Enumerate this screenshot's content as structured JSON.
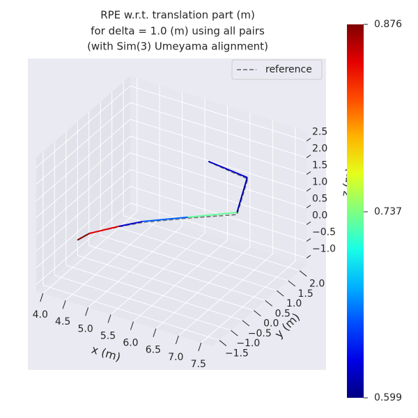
{
  "chart_data": {
    "type": "line3d",
    "title": [
      "RPE w.r.t. translation part (m)",
      "for delta = 1.0 (m) using all pairs",
      "(with Sim(3) Umeyama alignment)"
    ],
    "xlabel": "x (m)",
    "ylabel": "y (m)",
    "zlabel": "z (m)",
    "xlim": [
      3.85,
      7.75
    ],
    "ylim": [
      -1.8,
      2.3
    ],
    "zlim": [
      -1.2,
      2.8
    ],
    "xticks": [
      {
        "value": 4.0,
        "label": "4.0"
      },
      {
        "value": 4.5,
        "label": "4.5"
      },
      {
        "value": 5.0,
        "label": "5.0"
      },
      {
        "value": 5.5,
        "label": "5.5"
      },
      {
        "value": 6.0,
        "label": "6.0"
      },
      {
        "value": 6.5,
        "label": "6.5"
      },
      {
        "value": 7.0,
        "label": "7.0"
      },
      {
        "value": 7.5,
        "label": "7.5"
      }
    ],
    "yticks": [
      {
        "value": -1.5,
        "label": "−1.5"
      },
      {
        "value": -1.0,
        "label": "−1.0"
      },
      {
        "value": -0.5,
        "label": "−0.5"
      },
      {
        "value": 0.0,
        "label": "0.0"
      },
      {
        "value": 0.5,
        "label": "0.5"
      },
      {
        "value": 1.0,
        "label": "1.0"
      },
      {
        "value": 1.5,
        "label": "1.5"
      },
      {
        "value": 2.0,
        "label": "2.0"
      }
    ],
    "zticks": [
      {
        "value": -1.0,
        "label": "−1.0"
      },
      {
        "value": -0.5,
        "label": "−0.5"
      },
      {
        "value": 0.0,
        "label": "0.0"
      },
      {
        "value": 0.5,
        "label": "0.5"
      },
      {
        "value": 1.0,
        "label": "1.0"
      },
      {
        "value": 1.5,
        "label": "1.5"
      },
      {
        "value": 2.0,
        "label": "2.0"
      },
      {
        "value": 2.5,
        "label": "2.5"
      }
    ],
    "grid": true,
    "legend": "upper right",
    "series": [
      {
        "name": "reference",
        "color": "#777777",
        "style": "dashed",
        "x": [
          4.0,
          4.1,
          4.55,
          4.92,
          5.65,
          6.4,
          6.55,
          5.93
        ],
        "y": [
          -0.28,
          0.03,
          0.45,
          0.78,
          1.36,
          1.93,
          2.1,
          1.66
        ],
        "z": [
          -0.5,
          -0.45,
          -0.31,
          -0.22,
          -0.13,
          -0.05,
          0.98,
          1.48
        ]
      },
      {
        "x": [
          4.0,
          4.1,
          4.54,
          4.9,
          5.62,
          6.39,
          6.53,
          5.92
        ],
        "y": [
          -0.3,
          0.02,
          0.44,
          0.77,
          1.33,
          1.95,
          2.12,
          1.65
        ],
        "z": [
          -0.5,
          -0.45,
          -0.3,
          -0.2,
          -0.1,
          0.0,
          1.0,
          1.5
        ],
        "error": [
          0.876,
          0.85,
          0.62,
          0.66,
          0.73,
          0.61,
          0.62,
          0.599
        ]
      }
    ],
    "colorbar": {
      "cmap": "jet",
      "clim": [
        0.599,
        0.876
      ],
      "ticks": [
        0.599,
        0.737,
        0.876
      ]
    }
  }
}
